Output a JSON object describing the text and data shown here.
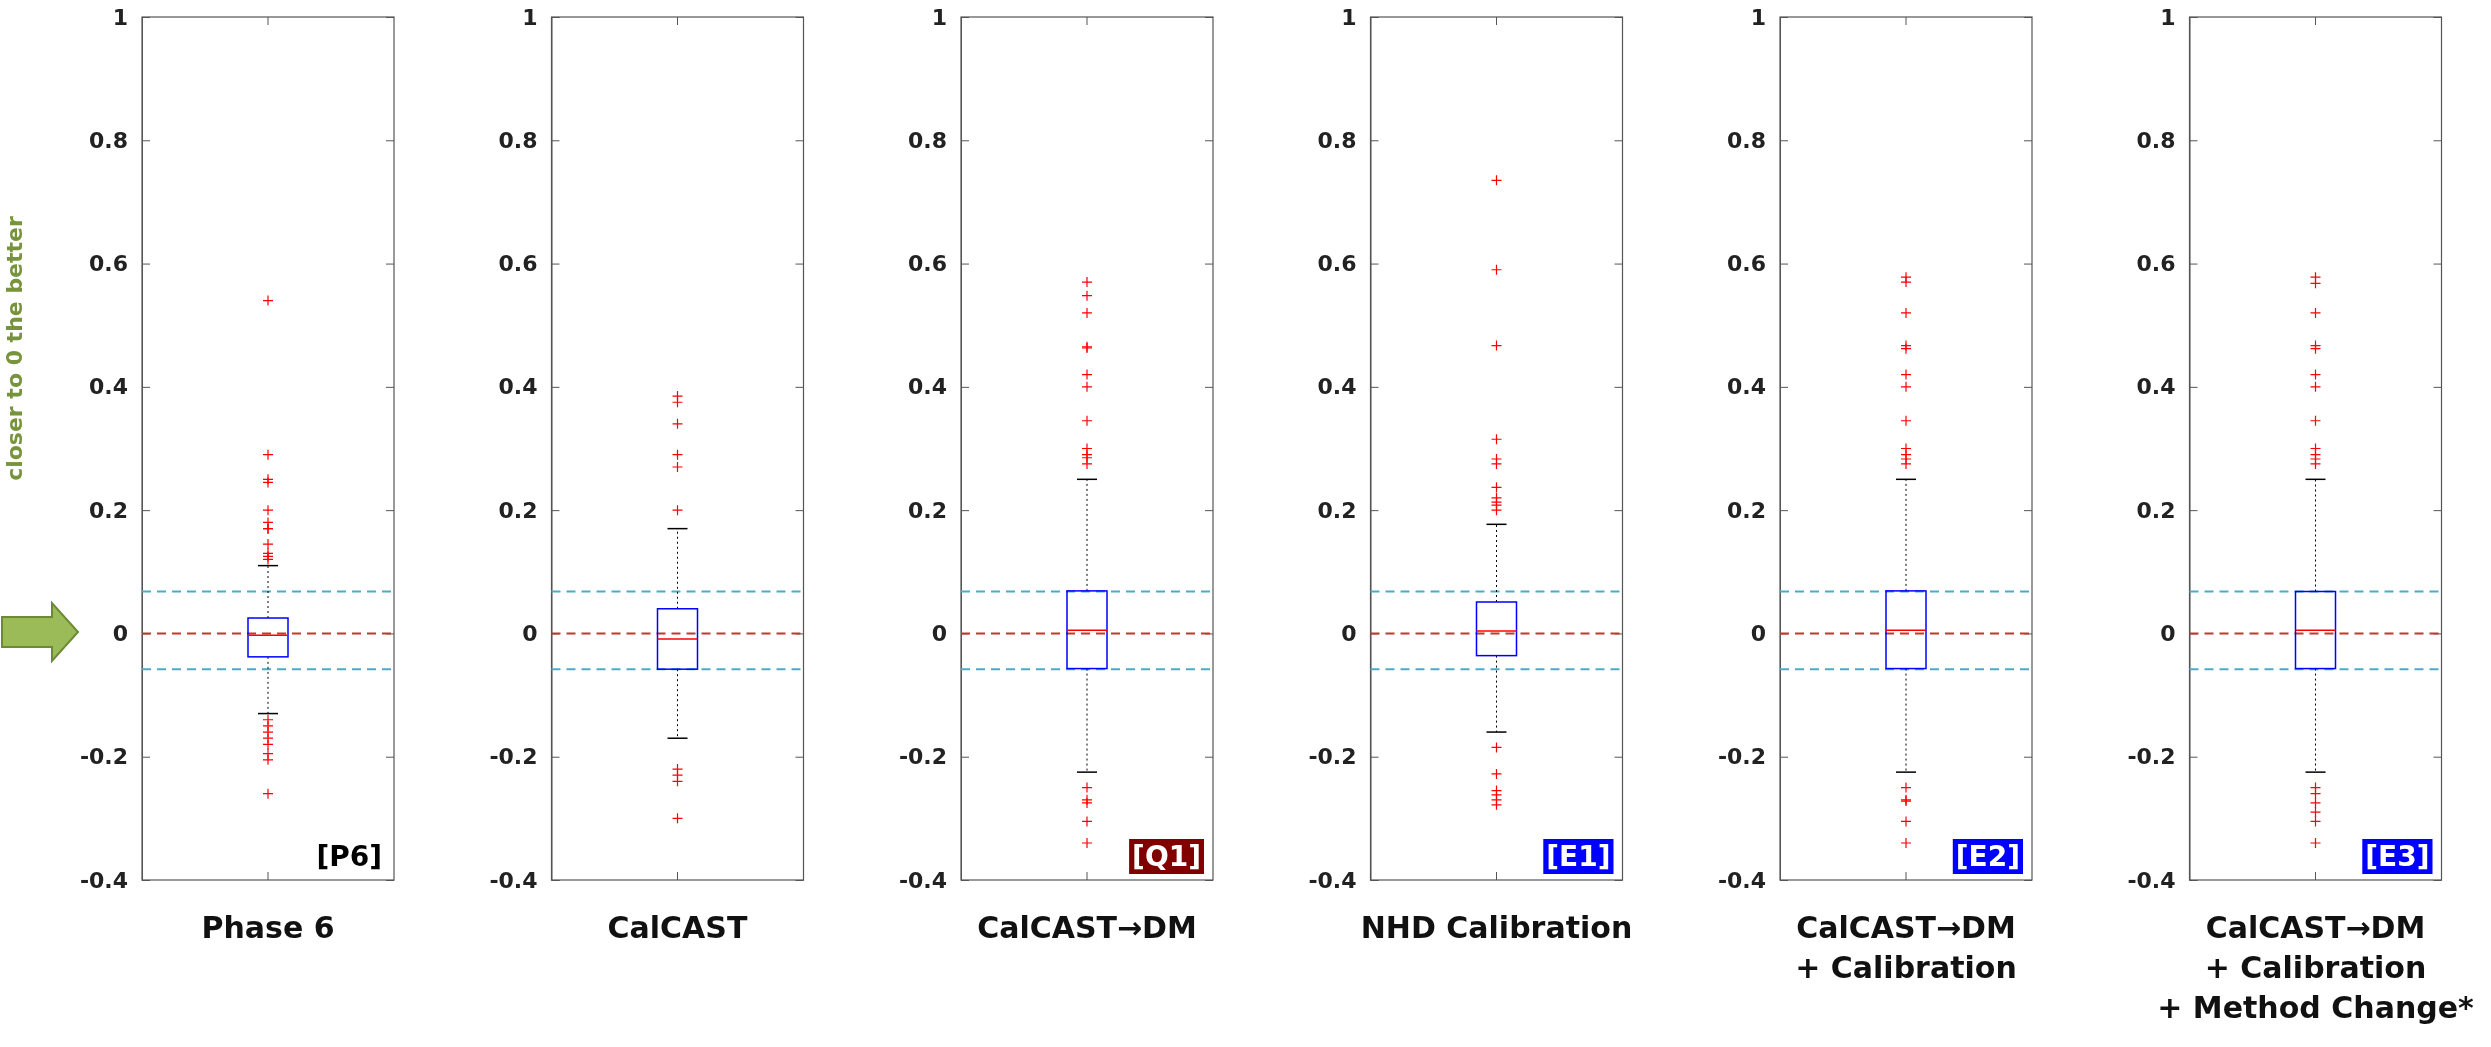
{
  "chart_data": [
    {
      "type": "box",
      "xlabel": "Phase 6",
      "ylabel": "closer to 0 the better",
      "categories": [
        null
      ],
      "ylim": [
        -0.4,
        1
      ],
      "yticks": [
        -0.4,
        -0.2,
        0,
        0.2,
        0.4,
        0.6,
        0.8,
        1
      ],
      "tick_labels": "y",
      "annotations": [
        "[P6]"
      ],
      "line_style": "dashed",
      "marker": "cross",
      "series": [
        {
          "color": "#0000ff",
          "boxes": [
            {
              "low": -0.13,
              "q1": -0.038,
              "median": -0.003,
              "q3": 0.025,
              "high": 0.11,
              "outliers": [
                0.54,
                0.29,
                0.25,
                0.245,
                0.2,
                0.18,
                0.17,
                0.17,
                0.145,
                0.13,
                0.125,
                0.12,
                -0.14,
                -0.15,
                -0.16,
                -0.17,
                -0.18,
                -0.195,
                -0.205,
                -0.26
              ]
            }
          ]
        }
      ],
      "ref_lines": [
        {
          "axis": "y",
          "value": 0,
          "color": "#c0392b"
        },
        {
          "axis": "y",
          "value": 0.068,
          "color": "#4bacc6"
        },
        {
          "axis": "y",
          "value": -0.058,
          "color": "#4bacc6"
        }
      ]
    },
    {
      "type": "box",
      "xlabel": "CalCAST",
      "categories": [
        null
      ],
      "ylim": [
        -0.4,
        1
      ],
      "yticks": [
        -0.4,
        -0.2,
        0,
        0.2,
        0.4,
        0.6,
        0.8,
        1
      ],
      "tick_labels": "y",
      "line_style": "dashed",
      "marker": "cross",
      "series": [
        {
          "color": "#0000ff",
          "boxes": [
            {
              "low": -0.17,
              "q1": -0.058,
              "median": -0.009,
              "q3": 0.04,
              "high": 0.17,
              "outliers": [
                0.385,
                0.375,
                0.34,
                0.29,
                0.27,
                0.2,
                -0.22,
                -0.23,
                -0.24,
                -0.3
              ]
            }
          ]
        }
      ],
      "ref_lines": [
        {
          "axis": "y",
          "value": 0,
          "color": "#c0392b"
        },
        {
          "axis": "y",
          "value": 0.068,
          "color": "#4bacc6"
        },
        {
          "axis": "y",
          "value": -0.058,
          "color": "#4bacc6"
        }
      ]
    },
    {
      "type": "box",
      "xlabel": "CalCAST→DM",
      "categories": [
        null
      ],
      "ylim": [
        -0.4,
        1
      ],
      "yticks": [
        -0.4,
        -0.2,
        0,
        0.2,
        0.4,
        0.6,
        0.8,
        1
      ],
      "tick_labels": "y",
      "annotations": [
        "[Q1]"
      ],
      "line_style": "dashed",
      "marker": "cross",
      "series": [
        {
          "color": "#0000ff",
          "boxes": [
            {
              "low": -0.225,
              "q1": -0.057,
              "median": 0.005,
              "q3": 0.069,
              "high": 0.25,
              "outliers": [
                0.57,
                0.548,
                0.52,
                0.465,
                0.463,
                0.42,
                0.4,
                0.345,
                0.3,
                0.29,
                0.285,
                0.275,
                -0.25,
                -0.27,
                -0.275,
                -0.305,
                -0.34
              ]
            }
          ]
        }
      ],
      "ref_lines": [
        {
          "axis": "y",
          "value": 0,
          "color": "#c0392b"
        },
        {
          "axis": "y",
          "value": 0.068,
          "color": "#4bacc6"
        },
        {
          "axis": "y",
          "value": -0.058,
          "color": "#4bacc6"
        }
      ]
    },
    {
      "type": "box",
      "xlabel": "NHD Calibration",
      "categories": [
        null
      ],
      "ylim": [
        -0.4,
        1
      ],
      "yticks": [
        -0.4,
        -0.2,
        0,
        0.2,
        0.4,
        0.6,
        0.8,
        1
      ],
      "tick_labels": "y",
      "annotations": [
        "[E1]"
      ],
      "line_style": "dashed",
      "marker": "cross",
      "series": [
        {
          "color": "#0000ff",
          "boxes": [
            {
              "low": -0.16,
              "q1": -0.036,
              "median": 0.004,
              "q3": 0.051,
              "high": 0.177,
              "outliers": [
                0.735,
                0.59,
                0.467,
                0.315,
                0.283,
                0.275,
                0.237,
                0.22,
                0.213,
                0.208,
                0.2,
                -0.185,
                -0.228,
                -0.255,
                -0.262,
                -0.27,
                -0.278
              ]
            }
          ]
        }
      ],
      "ref_lines": [
        {
          "axis": "y",
          "value": 0,
          "color": "#c0392b"
        },
        {
          "axis": "y",
          "value": 0.068,
          "color": "#4bacc6"
        },
        {
          "axis": "y",
          "value": -0.058,
          "color": "#4bacc6"
        }
      ]
    },
    {
      "type": "box",
      "xlabel": "CalCAST→DM\n+ Calibration",
      "categories": [
        null
      ],
      "ylim": [
        -0.4,
        1
      ],
      "yticks": [
        -0.4,
        -0.2,
        0,
        0.2,
        0.4,
        0.6,
        0.8,
        1
      ],
      "tick_labels": "y",
      "annotations": [
        "[E2]"
      ],
      "line_style": "dashed",
      "marker": "cross",
      "series": [
        {
          "color": "#0000ff",
          "boxes": [
            {
              "low": -0.225,
              "q1": -0.057,
              "median": 0.005,
              "q3": 0.069,
              "high": 0.25,
              "outliers": [
                0.578,
                0.57,
                0.52,
                0.467,
                0.462,
                0.42,
                0.4,
                0.345,
                0.3,
                0.29,
                0.283,
                0.275,
                -0.25,
                -0.27,
                -0.272,
                -0.305,
                -0.34
              ]
            }
          ]
        }
      ],
      "ref_lines": [
        {
          "axis": "y",
          "value": 0,
          "color": "#c0392b"
        },
        {
          "axis": "y",
          "value": 0.068,
          "color": "#4bacc6"
        },
        {
          "axis": "y",
          "value": -0.058,
          "color": "#4bacc6"
        }
      ]
    },
    {
      "type": "box",
      "xlabel": "CalCAST→DM\n+ Calibration\n+ Method Change*",
      "categories": [
        null
      ],
      "ylim": [
        -0.4,
        1
      ],
      "yticks": [
        -0.4,
        -0.2,
        0,
        0.2,
        0.4,
        0.6,
        0.8,
        1
      ],
      "tick_labels": "y",
      "annotations": [
        "[E3]"
      ],
      "line_style": "dashed",
      "marker": "cross",
      "series": [
        {
          "color": "#0000ff",
          "boxes": [
            {
              "low": -0.225,
              "q1": -0.057,
              "median": 0.005,
              "q3": 0.068,
              "high": 0.25,
              "outliers": [
                0.578,
                0.568,
                0.52,
                0.467,
                0.462,
                0.42,
                0.4,
                0.345,
                0.3,
                0.29,
                0.283,
                0.275,
                -0.25,
                -0.26,
                -0.275,
                -0.29,
                -0.305,
                -0.34
              ]
            }
          ]
        }
      ],
      "ref_lines": [
        {
          "axis": "y",
          "value": 0,
          "color": "#c0392b"
        },
        {
          "axis": "y",
          "value": 0.068,
          "color": "#4bacc6"
        },
        {
          "axis": "y",
          "value": -0.058,
          "color": "#4bacc6"
        }
      ]
    }
  ]
}
